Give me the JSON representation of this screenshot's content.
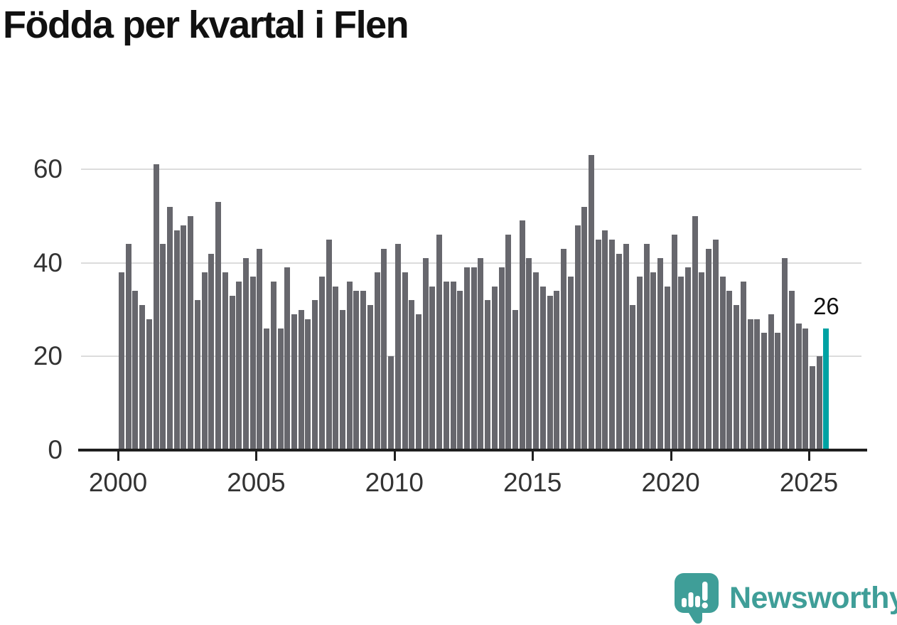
{
  "title": "Födda per kvartal i Flen",
  "annotation": {
    "label": "26"
  },
  "branding": {
    "name": "Newsworthy"
  },
  "colors": {
    "bar": "#67676d",
    "highlight": "#00a2a3",
    "axis": "#1f1f1f",
    "gridline": "#dcdcdc",
    "tick_text": "#333333",
    "title_text": "#111111",
    "brand_teal": "#3f9e98"
  },
  "chart_data": {
    "type": "bar",
    "title": "Födda per kvartal i Flen",
    "xlabel": "",
    "ylabel": "",
    "frequency": "quarterly",
    "start_year": 2000,
    "start_quarter": 1,
    "values": [
      38,
      44,
      34,
      31,
      28,
      61,
      44,
      52,
      47,
      48,
      50,
      32,
      38,
      42,
      53,
      38,
      33,
      36,
      41,
      37,
      43,
      26,
      36,
      26,
      39,
      29,
      30,
      28,
      32,
      37,
      45,
      35,
      30,
      36,
      34,
      34,
      31,
      38,
      43,
      20,
      44,
      38,
      32,
      29,
      41,
      35,
      46,
      36,
      36,
      34,
      39,
      39,
      41,
      32,
      35,
      39,
      46,
      30,
      49,
      41,
      38,
      35,
      33,
      34,
      43,
      37,
      48,
      52,
      63,
      45,
      47,
      45,
      42,
      44,
      31,
      37,
      44,
      38,
      41,
      35,
      46,
      37,
      39,
      50,
      38,
      43,
      45,
      37,
      34,
      31,
      36,
      28,
      28,
      25,
      29,
      25,
      41,
      34,
      27,
      26,
      18,
      20,
      26
    ],
    "highlight_index": 102,
    "highlight_value_label": "26",
    "yticks": [
      0,
      20,
      40,
      60
    ],
    "ylim": [
      0,
      68
    ],
    "xticks": [
      {
        "label": "2000",
        "quarter_index": 0
      },
      {
        "label": "2005",
        "quarter_index": 20
      },
      {
        "label": "2010",
        "quarter_index": 40
      },
      {
        "label": "2015",
        "quarter_index": 60
      },
      {
        "label": "2020",
        "quarter_index": 80
      },
      {
        "label": "2025",
        "quarter_index": 100
      }
    ],
    "grid": true,
    "legend": false
  }
}
